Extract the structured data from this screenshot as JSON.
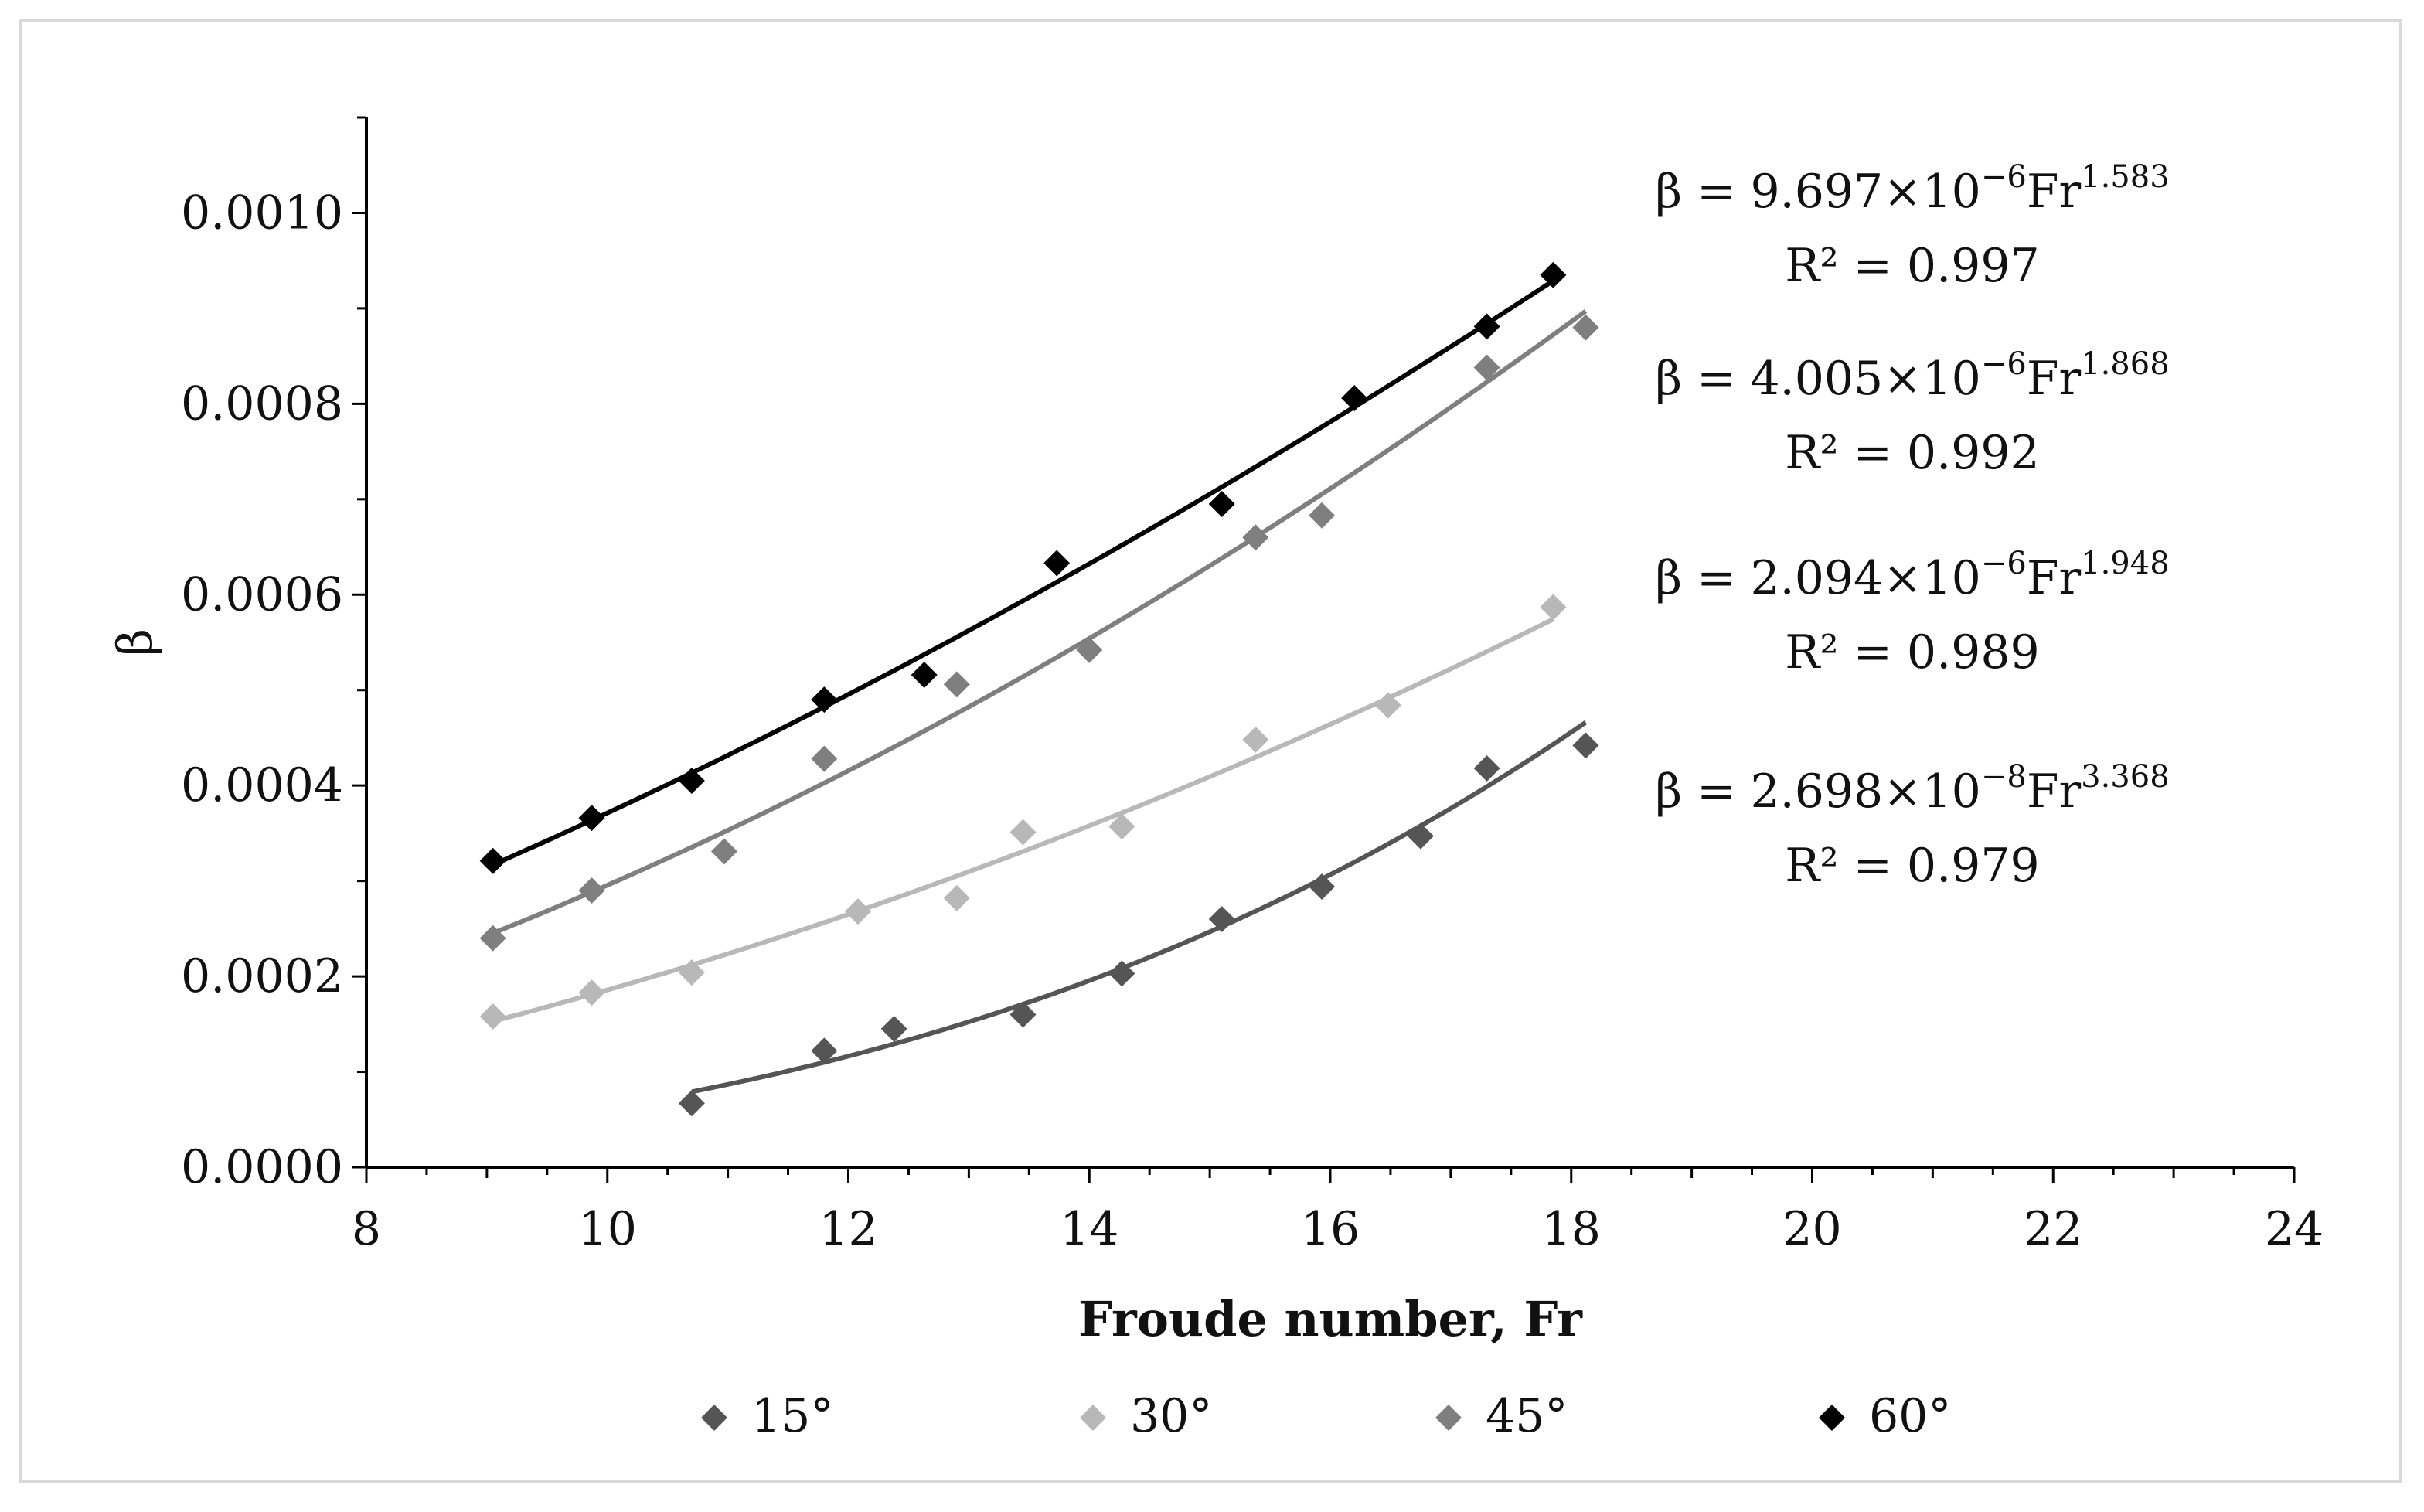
{
  "chart_data": {
    "type": "scatter",
    "title": "",
    "xlabel": "Froude number, Fr",
    "ylabel": "β",
    "xlim": [
      8,
      24
    ],
    "ylim": [
      0,
      0.0011
    ],
    "x_ticks": [
      8,
      10,
      12,
      14,
      16,
      18,
      20,
      22,
      24
    ],
    "x_tick_labels": [
      "8",
      "10",
      "12",
      "14",
      "16",
      "18",
      "20",
      "22",
      "24"
    ],
    "y_ticks": [
      0,
      0.0002,
      0.0004,
      0.0006,
      0.0008,
      0.001
    ],
    "y_tick_labels": [
      "0.0000",
      "0.0002",
      "0.0004",
      "0.0006",
      "0.0008",
      "0.0010"
    ],
    "grid": false,
    "legend_position": "bottom",
    "series": [
      {
        "name": "15°",
        "color": "#555555",
        "marker": "diamond",
        "x": [
          10.7,
          11.8,
          12.38,
          13.45,
          14.27,
          15.1,
          15.93,
          16.75,
          17.3,
          18.12
        ],
        "y": [
          6.7e-05,
          0.000122,
          0.000145,
          0.00016,
          0.000203,
          0.00026,
          0.000294,
          0.000347,
          0.000418,
          0.000442
        ],
        "fit": {
          "a": 2.698e-08,
          "b": 3.368,
          "x_range": [
            10.7,
            18.12
          ]
        },
        "equation": {
          "base": "β = 2.698×10",
          "exp": "−8",
          "mid": "Fr",
          "power": "3.368",
          "r2": "R² = 0.979"
        }
      },
      {
        "name": "30°",
        "color": "#b8b8b8",
        "marker": "diamond",
        "x": [
          9.05,
          9.87,
          10.7,
          12.08,
          12.9,
          13.45,
          14.27,
          15.38,
          16.48,
          17.85
        ],
        "y": [
          0.000158,
          0.000183,
          0.000204,
          0.000268,
          0.000282,
          0.000351,
          0.000357,
          0.000448,
          0.000484,
          0.000587
        ],
        "fit": {
          "a": 2.094e-06,
          "b": 1.948,
          "x_range": [
            9.05,
            17.85
          ]
        },
        "equation": {
          "base": "β = 2.094×10",
          "exp": "−6",
          "mid": "Fr",
          "power": "1.948",
          "r2": "R² = 0.989"
        }
      },
      {
        "name": "45°",
        "color": "#7f7f7f",
        "marker": "diamond",
        "x": [
          9.05,
          9.87,
          10.97,
          11.8,
          12.9,
          14.0,
          15.38,
          15.93,
          17.3,
          18.12
        ],
        "y": [
          0.00024,
          0.00029,
          0.000331,
          0.000428,
          0.000506,
          0.000542,
          0.00066,
          0.000683,
          0.000838,
          0.00088
        ],
        "fit": {
          "a": 4.005e-06,
          "b": 1.868,
          "x_range": [
            9.05,
            18.12
          ]
        },
        "equation": {
          "base": "β = 4.005×10",
          "exp": "−6",
          "mid": "Fr",
          "power": "1.868",
          "r2": "R² = 0.992"
        }
      },
      {
        "name": "60°",
        "color": "#000000",
        "marker": "diamond",
        "x": [
          9.05,
          9.87,
          10.7,
          11.8,
          12.63,
          13.73,
          15.1,
          16.2,
          17.3,
          17.85
        ],
        "y": [
          0.000321,
          0.000366,
          0.000405,
          0.00049,
          0.000516,
          0.000633,
          0.000695,
          0.000806,
          0.000881,
          0.000935
        ],
        "fit": {
          "a": 9.697e-06,
          "b": 1.583,
          "x_range": [
            9.05,
            17.85
          ]
        },
        "equation": {
          "base": "β = 9.697×10",
          "exp": "−6",
          "mid": "Fr",
          "power": "1.583",
          "r2": "R² = 0.997"
        }
      }
    ]
  }
}
